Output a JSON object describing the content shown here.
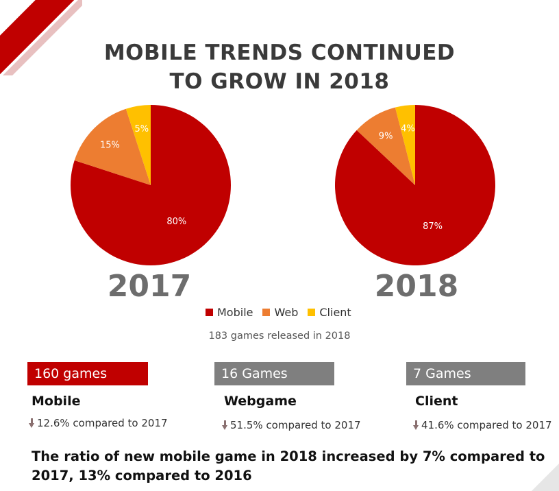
{
  "title_line1": "MOBILE TRENDS CONTINUED",
  "title_line2": "TO GROW IN 2018",
  "legend": [
    {
      "name": "Mobile",
      "color": "#c00000"
    },
    {
      "name": "Web",
      "color": "#ed7d31"
    },
    {
      "name": "Client",
      "color": "#ffc000"
    }
  ],
  "subtitle": "183 games released in 2018",
  "chart_data": [
    {
      "type": "pie",
      "title": "2017",
      "categories": [
        "Mobile",
        "Web",
        "Client"
      ],
      "values": [
        80,
        15,
        5
      ],
      "labels": [
        "80%",
        "15%",
        "5%"
      ],
      "colors": [
        "#c00000",
        "#ed7d31",
        "#ffc000"
      ]
    },
    {
      "type": "pie",
      "title": "2018",
      "categories": [
        "Mobile",
        "Web",
        "Client"
      ],
      "values": [
        87,
        9,
        4
      ],
      "labels": [
        "87%",
        "9%",
        "4%"
      ],
      "colors": [
        "#c00000",
        "#ed7d31",
        "#ffc000"
      ]
    }
  ],
  "stats": [
    {
      "badge": "160 games",
      "badge_color": "#c00000",
      "label": "Mobile",
      "change": "12.6% compared to 2017"
    },
    {
      "badge": "16 Games",
      "badge_color": "#7f7f7f",
      "label": "Webgame",
      "change": "51.5% compared to 2017"
    },
    {
      "badge": "7 Games",
      "badge_color": "#7f7f7f",
      "label": "Client",
      "change": "41.6% compared to 2017"
    }
  ],
  "footer": "The ratio of new mobile game in 2018 increased by 7% compared to 2017, 13% compared to 2016"
}
